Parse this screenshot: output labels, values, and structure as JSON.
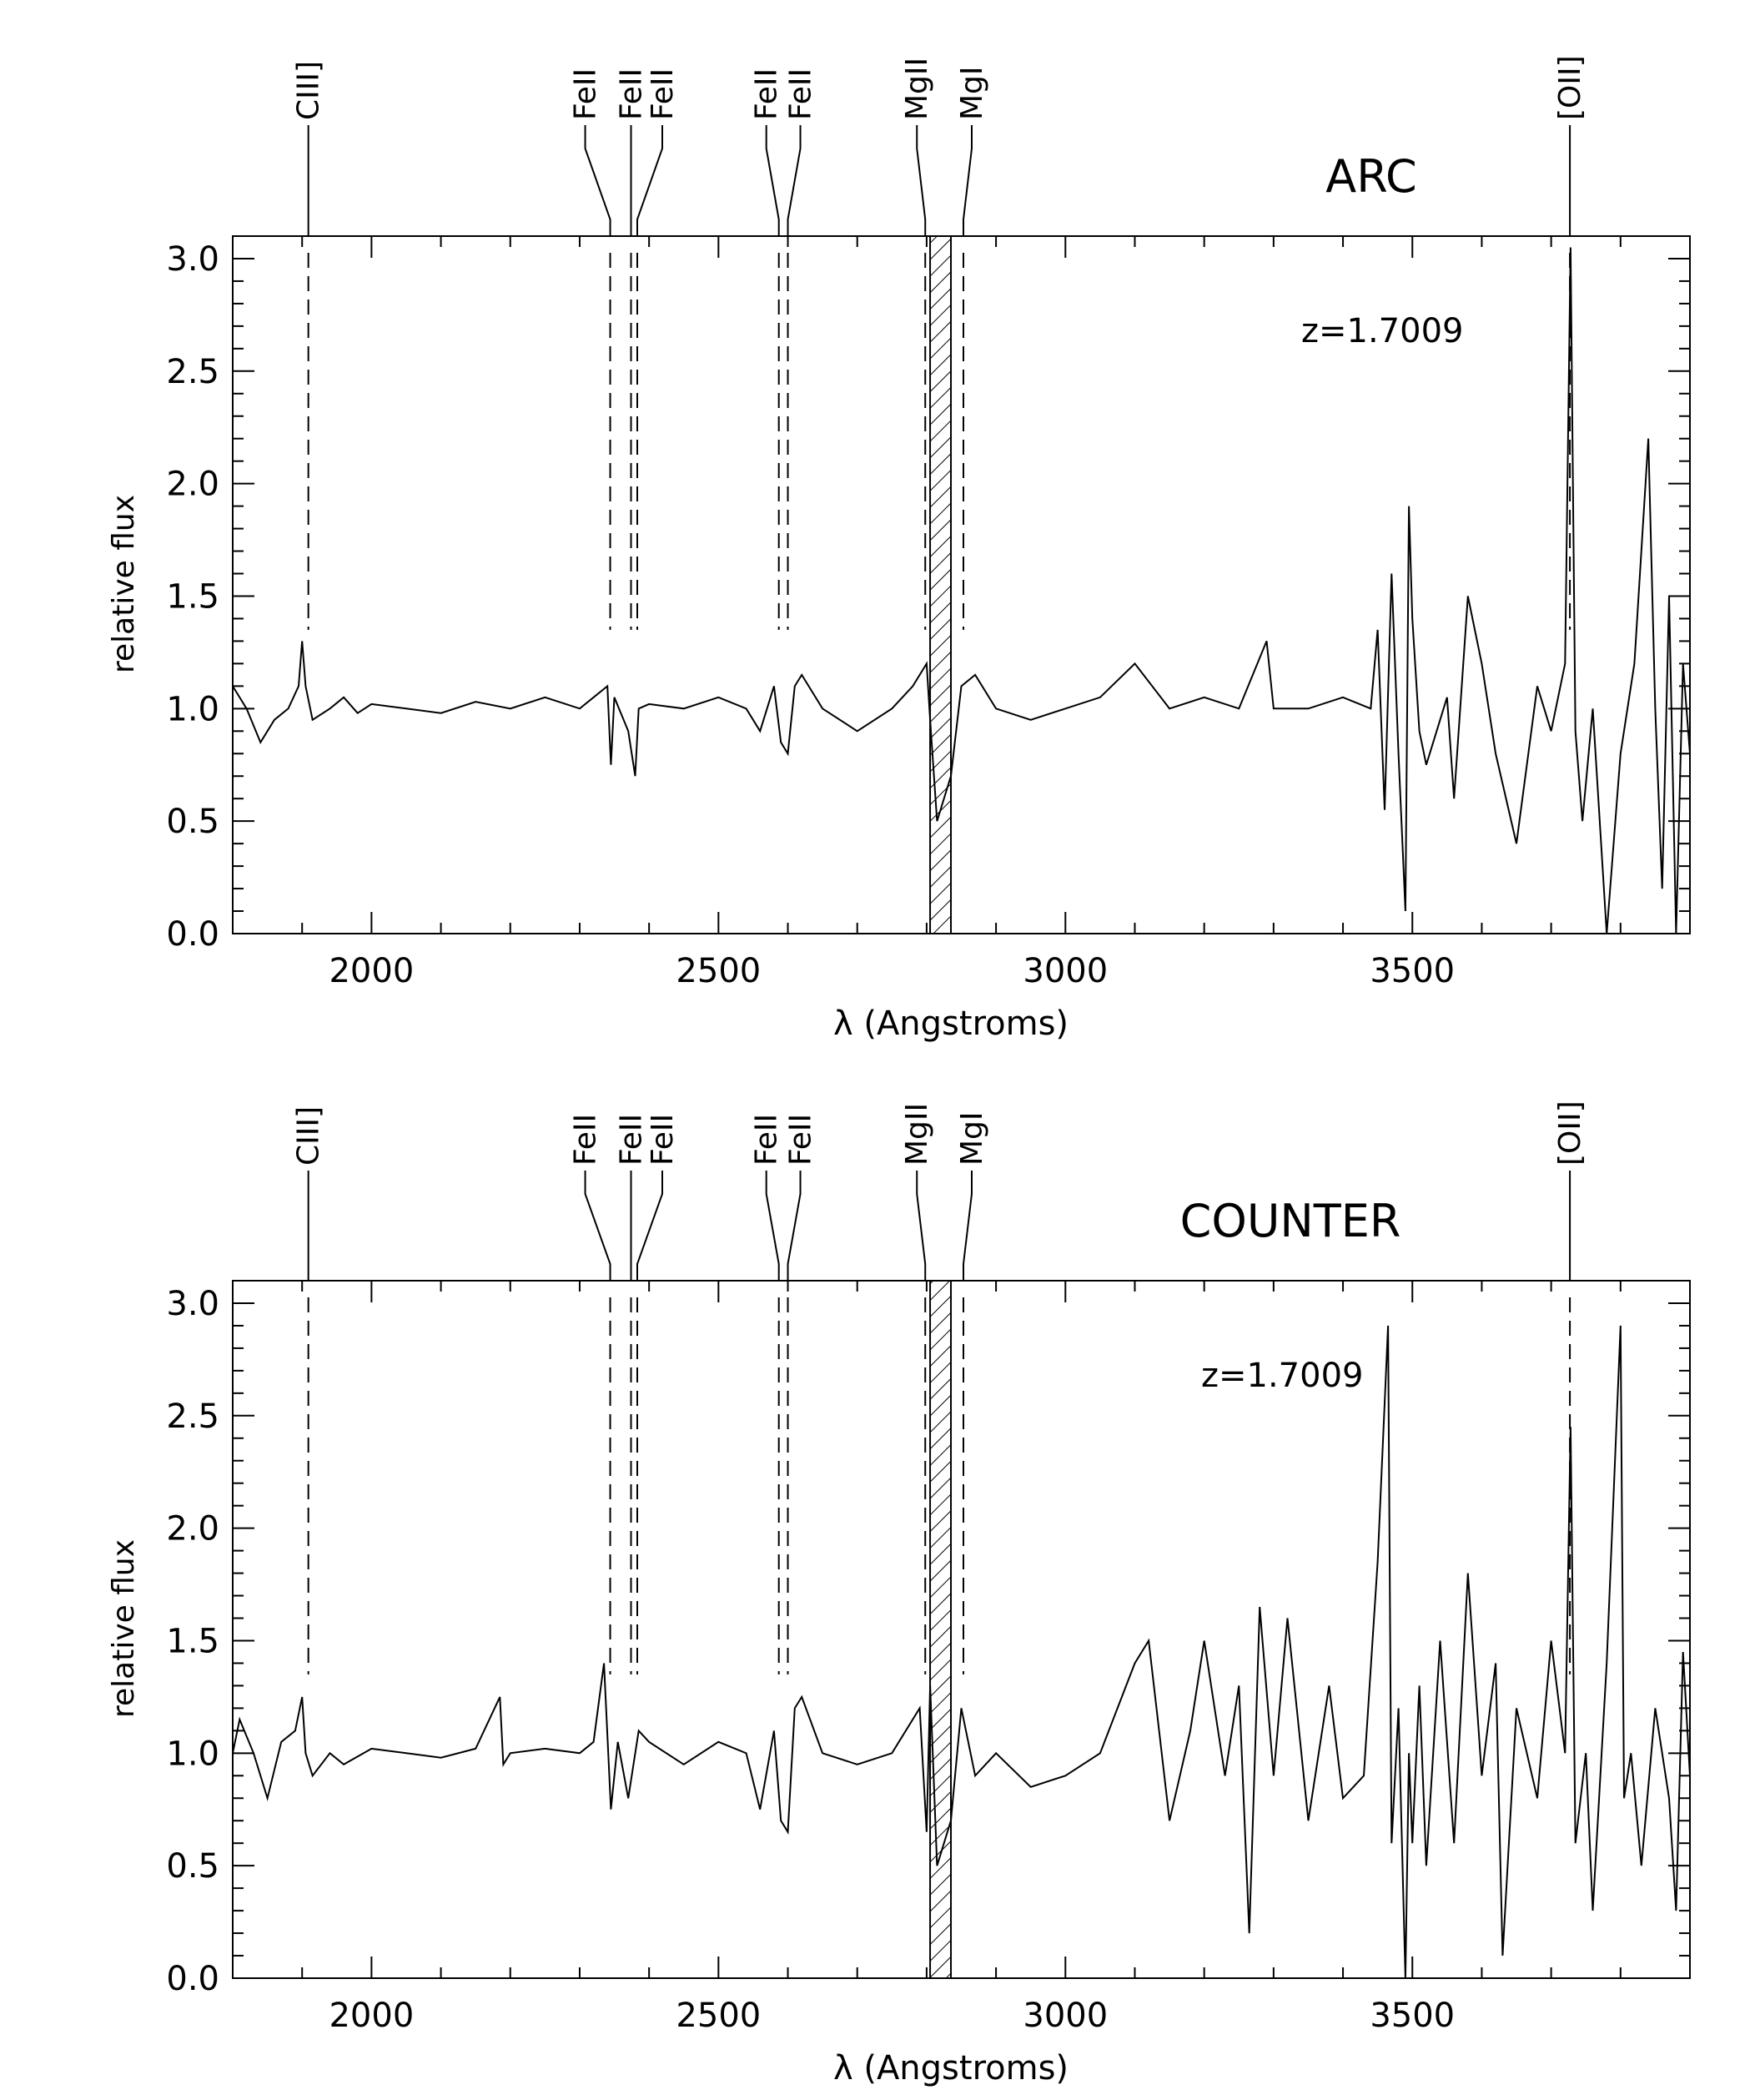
{
  "chart_data": [
    {
      "type": "line",
      "title": "ARC",
      "annotation": "z=1.7009",
      "xlabel": "λ (Angstroms)",
      "ylabel": "relative flux",
      "xlim": [
        1800,
        3900
      ],
      "ylim": [
        0.0,
        3.1
      ],
      "x_ticks": [
        2000,
        2500,
        3000,
        3500
      ],
      "y_ticks": [
        0.0,
        0.5,
        1.0,
        1.5,
        2.0,
        2.5,
        3.0
      ],
      "y_tick_labels": [
        "0.0",
        "0.5",
        "1.0",
        "1.5",
        "2.0",
        "2.5",
        "3.0"
      ],
      "line_labels": [
        {
          "label": "CIII]",
          "wavelength": 1909
        },
        {
          "label": "FeII",
          "wavelength": 2344
        },
        {
          "label": "FeII",
          "wavelength": 2374
        },
        {
          "label": "FeII",
          "wavelength": 2383
        },
        {
          "label": "FeII",
          "wavelength": 2587
        },
        {
          "label": "FeII",
          "wavelength": 2600
        },
        {
          "label": "MgII",
          "wavelength": 2798
        },
        {
          "label": "MgI",
          "wavelength": 2853
        },
        {
          "label": "[OII]",
          "wavelength": 3727
        }
      ],
      "masked_region": [
        2805,
        2835
      ],
      "series": [
        {
          "x": [
            1800,
            1820,
            1840,
            1860,
            1880,
            1895,
            1900,
            1905,
            1915,
            1940,
            1960,
            1980,
            2000,
            2050,
            2100,
            2150,
            2200,
            2250,
            2300,
            2320,
            2340,
            2345,
            2350,
            2370,
            2380,
            2385,
            2400,
            2450,
            2500,
            2540,
            2560,
            2580,
            2590,
            2600,
            2610,
            2620,
            2650,
            2700,
            2750,
            2780,
            2800,
            2805,
            2815,
            2835,
            2850,
            2870,
            2900,
            2950,
            3000,
            3050,
            3100,
            3150,
            3200,
            3250,
            3290,
            3300,
            3350,
            3400,
            3440,
            3450,
            3460,
            3470,
            3480,
            3490,
            3495,
            3500,
            3510,
            3520,
            3550,
            3560,
            3580,
            3600,
            3620,
            3650,
            3680,
            3700,
            3720,
            3728,
            3735,
            3745,
            3760,
            3780,
            3800,
            3820,
            3840,
            3850,
            3860,
            3870,
            3880,
            3890,
            3900
          ],
          "y": [
            1.1,
            1.0,
            0.85,
            0.95,
            1.0,
            1.1,
            1.3,
            1.1,
            0.95,
            1.0,
            1.05,
            0.98,
            1.02,
            1.0,
            0.98,
            1.03,
            1.0,
            1.05,
            1.0,
            1.05,
            1.1,
            0.75,
            1.05,
            0.9,
            0.7,
            1.0,
            1.02,
            1.0,
            1.05,
            1.0,
            0.9,
            1.1,
            0.85,
            0.8,
            1.1,
            1.15,
            1.0,
            0.9,
            1.0,
            1.1,
            1.2,
            0.95,
            0.5,
            0.7,
            1.1,
            1.15,
            1.0,
            0.95,
            1.0,
            1.05,
            1.2,
            1.0,
            1.05,
            1.0,
            1.3,
            1.0,
            1.0,
            1.05,
            1.0,
            1.35,
            0.55,
            1.6,
            0.8,
            0.1,
            1.9,
            1.4,
            0.9,
            0.75,
            1.05,
            0.6,
            1.5,
            1.2,
            0.8,
            0.4,
            1.1,
            0.9,
            1.2,
            3.05,
            0.9,
            0.5,
            1.0,
            0.0,
            0.8,
            1.2,
            2.2,
            1.0,
            0.2,
            1.5,
            0.0,
            1.2,
            0.8
          ]
        }
      ]
    },
    {
      "type": "line",
      "title": "COUNTER",
      "annotation": "z=1.7009",
      "xlabel": "λ (Angstroms)",
      "ylabel": "relative flux",
      "xlim": [
        1800,
        3900
      ],
      "ylim": [
        0.0,
        3.1
      ],
      "x_ticks": [
        2000,
        2500,
        3000,
        3500
      ],
      "y_ticks": [
        0.0,
        0.5,
        1.0,
        1.5,
        2.0,
        2.5,
        3.0
      ],
      "y_tick_labels": [
        "0.0",
        "0.5",
        "1.0",
        "1.5",
        "2.0",
        "2.5",
        "3.0"
      ],
      "line_labels": [
        {
          "label": "CIII]",
          "wavelength": 1909
        },
        {
          "label": "FeII",
          "wavelength": 2344
        },
        {
          "label": "FeII",
          "wavelength": 2374
        },
        {
          "label": "FeII",
          "wavelength": 2383
        },
        {
          "label": "FeII",
          "wavelength": 2587
        },
        {
          "label": "FeII",
          "wavelength": 2600
        },
        {
          "label": "MgII",
          "wavelength": 2798
        },
        {
          "label": "MgI",
          "wavelength": 2853
        },
        {
          "label": "[OII]",
          "wavelength": 3727
        }
      ],
      "masked_region": [
        2805,
        2835
      ],
      "series": [
        {
          "x": [
            1800,
            1810,
            1830,
            1850,
            1870,
            1890,
            1900,
            1905,
            1915,
            1940,
            1960,
            2000,
            2050,
            2100,
            2150,
            2185,
            2190,
            2200,
            2250,
            2300,
            2320,
            2335,
            2345,
            2355,
            2370,
            2385,
            2400,
            2450,
            2500,
            2540,
            2560,
            2580,
            2590,
            2600,
            2610,
            2620,
            2650,
            2700,
            2750,
            2790,
            2800,
            2805,
            2815,
            2835,
            2850,
            2870,
            2900,
            2950,
            3000,
            3050,
            3100,
            3120,
            3150,
            3180,
            3200,
            3230,
            3250,
            3265,
            3280,
            3300,
            3320,
            3350,
            3380,
            3400,
            3430,
            3450,
            3465,
            3470,
            3480,
            3490,
            3495,
            3500,
            3510,
            3520,
            3540,
            3560,
            3580,
            3600,
            3620,
            3630,
            3650,
            3680,
            3700,
            3720,
            3728,
            3735,
            3750,
            3760,
            3780,
            3800,
            3805,
            3815,
            3830,
            3850,
            3870,
            3880,
            3890,
            3900
          ],
          "y": [
            1.0,
            1.15,
            1.0,
            0.8,
            1.05,
            1.1,
            1.25,
            1.0,
            0.9,
            1.0,
            0.95,
            1.02,
            1.0,
            0.98,
            1.02,
            1.25,
            0.95,
            1.0,
            1.02,
            1.0,
            1.05,
            1.4,
            0.75,
            1.05,
            0.8,
            1.1,
            1.05,
            0.95,
            1.05,
            1.0,
            0.75,
            1.1,
            0.7,
            0.65,
            1.2,
            1.25,
            1.0,
            0.95,
            1.0,
            1.2,
            0.65,
            1.3,
            0.5,
            0.7,
            1.2,
            0.9,
            1.0,
            0.85,
            0.9,
            1.0,
            1.4,
            1.5,
            0.7,
            1.1,
            1.5,
            0.9,
            1.3,
            0.2,
            1.65,
            0.9,
            1.6,
            0.7,
            1.3,
            0.8,
            0.9,
            1.85,
            2.9,
            0.6,
            1.2,
            0.0,
            1.0,
            0.6,
            1.3,
            0.5,
            1.5,
            0.6,
            1.8,
            0.9,
            1.4,
            0.1,
            1.2,
            0.8,
            1.5,
            1.0,
            2.45,
            0.6,
            1.0,
            0.3,
            1.4,
            2.9,
            0.8,
            1.0,
            0.5,
            1.2,
            0.8,
            0.3,
            1.45,
            0.9
          ]
        }
      ]
    }
  ]
}
